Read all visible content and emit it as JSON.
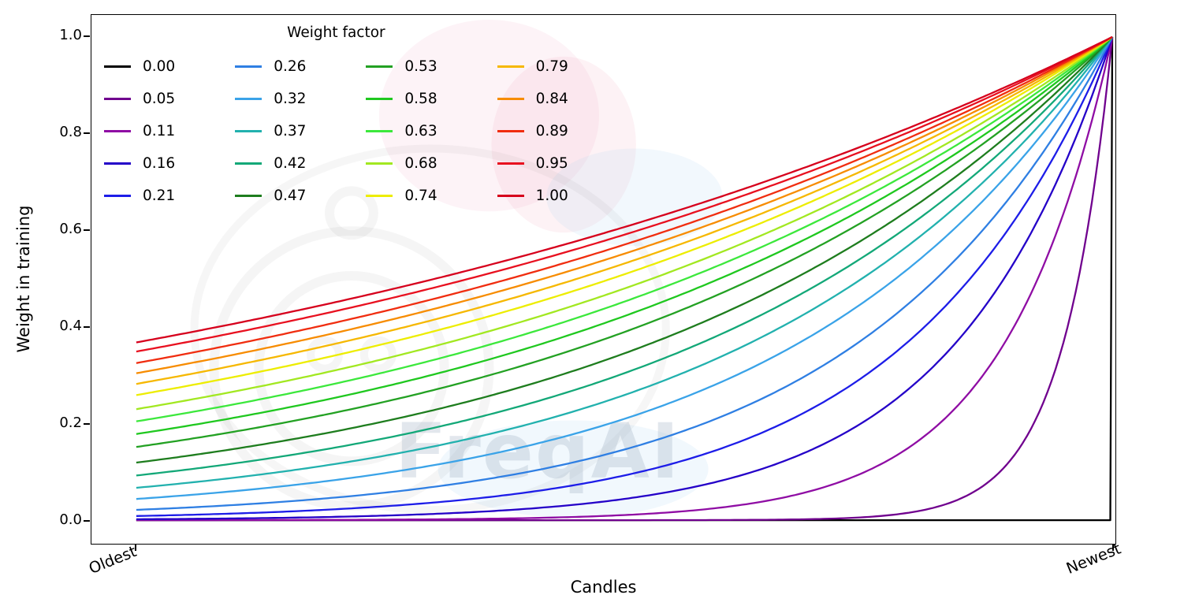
{
  "figure": {
    "watermark": "FreqAI"
  },
  "chart_data": {
    "type": "line",
    "title": "",
    "xlabel": "Candles",
    "ylabel": "Weight in training",
    "ylim": [
      0.0,
      1.0
    ],
    "yticks": [
      0.0,
      0.2,
      0.4,
      0.6,
      0.8,
      1.0
    ],
    "y_tick_labels": [
      "0.0",
      "0.2",
      "0.4",
      "0.6",
      "0.8",
      "1.0"
    ],
    "x_axis": {
      "kind": "normalized-candle-index",
      "range": [
        0,
        1
      ],
      "tick_positions": [
        0,
        1
      ],
      "tick_labels": [
        "Oldest",
        "Newest"
      ]
    },
    "legend": {
      "title": "Weight factor",
      "position": "upper left",
      "columns": 4,
      "frame": false
    },
    "formula": "weight(x) = exp(-(1 - x) / weight_factor) for x in [0,1] from Oldest to Newest; weight_factor 0 gives 0 everywhere except 1 at Newest",
    "x_samples": [
      0,
      0.1,
      0.2,
      0.3,
      0.4,
      0.5,
      0.6,
      0.7,
      0.8,
      0.9,
      1.0
    ],
    "series": [
      {
        "name": "0.00",
        "factor": 0.0,
        "color": "#000000",
        "values": [
          0,
          0,
          0,
          0,
          0,
          0,
          0,
          0,
          0,
          0,
          1
        ]
      },
      {
        "name": "0.05",
        "factor": 0.05,
        "color": "#70018e",
        "values": [
          0,
          0,
          0,
          0,
          0,
          0,
          0,
          0.003,
          0.018,
          0.135,
          1
        ]
      },
      {
        "name": "0.11",
        "factor": 0.11,
        "color": "#8f0da4",
        "values": [
          0,
          0,
          0.001,
          0.002,
          0.004,
          0.011,
          0.026,
          0.065,
          0.162,
          0.403,
          1
        ]
      },
      {
        "name": "0.16",
        "factor": 0.16,
        "color": "#2400c8",
        "values": [
          0.002,
          0.004,
          0.007,
          0.013,
          0.024,
          0.044,
          0.082,
          0.153,
          0.287,
          0.535,
          1
        ]
      },
      {
        "name": "0.21",
        "factor": 0.21,
        "color": "#1d1de8",
        "values": [
          0.009,
          0.014,
          0.022,
          0.036,
          0.057,
          0.092,
          0.149,
          0.24,
          0.386,
          0.621,
          1
        ]
      },
      {
        "name": "0.26",
        "factor": 0.26,
        "color": "#2f7fe3",
        "values": [
          0.021,
          0.031,
          0.046,
          0.068,
          0.1,
          0.146,
          0.215,
          0.316,
          0.463,
          0.681,
          1
        ]
      },
      {
        "name": "0.32",
        "factor": 0.32,
        "color": "#3aa3e8",
        "values": [
          0.044,
          0.06,
          0.082,
          0.112,
          0.153,
          0.21,
          0.287,
          0.392,
          0.535,
          0.732,
          1
        ]
      },
      {
        "name": "0.37",
        "factor": 0.37,
        "color": "#22b1ae",
        "values": [
          0.067,
          0.088,
          0.115,
          0.151,
          0.198,
          0.259,
          0.339,
          0.444,
          0.582,
          0.763,
          1
        ]
      },
      {
        "name": "0.42",
        "factor": 0.42,
        "color": "#13a878",
        "values": [
          0.092,
          0.117,
          0.149,
          0.189,
          0.24,
          0.304,
          0.386,
          0.49,
          0.621,
          0.788,
          1
        ]
      },
      {
        "name": "0.47",
        "factor": 0.47,
        "color": "#1e7d1e",
        "values": [
          0.119,
          0.147,
          0.182,
          0.226,
          0.279,
          0.345,
          0.427,
          0.528,
          0.653,
          0.808,
          1
        ]
      },
      {
        "name": "0.53",
        "factor": 0.53,
        "color": "#23a123",
        "values": [
          0.152,
          0.183,
          0.221,
          0.267,
          0.322,
          0.389,
          0.47,
          0.568,
          0.686,
          0.828,
          1
        ]
      },
      {
        "name": "0.58",
        "factor": 0.58,
        "color": "#1fc81f",
        "values": [
          0.178,
          0.212,
          0.252,
          0.299,
          0.356,
          0.422,
          0.502,
          0.596,
          0.708,
          0.842,
          1
        ]
      },
      {
        "name": "0.63",
        "factor": 0.63,
        "color": "#3ce83c",
        "values": [
          0.204,
          0.24,
          0.281,
          0.329,
          0.386,
          0.452,
          0.53,
          0.621,
          0.728,
          0.853,
          1
        ]
      },
      {
        "name": "0.68",
        "factor": 0.68,
        "color": "#a2e821",
        "values": [
          0.23,
          0.266,
          0.308,
          0.357,
          0.414,
          0.479,
          0.555,
          0.643,
          0.745,
          0.863,
          1
        ]
      },
      {
        "name": "0.74",
        "factor": 0.74,
        "color": "#eded00",
        "values": [
          0.259,
          0.296,
          0.339,
          0.388,
          0.444,
          0.509,
          0.582,
          0.667,
          0.763,
          0.874,
          1
        ]
      },
      {
        "name": "0.79",
        "factor": 0.79,
        "color": "#f6b801",
        "values": [
          0.282,
          0.32,
          0.363,
          0.412,
          0.468,
          0.531,
          0.603,
          0.684,
          0.776,
          0.881,
          1
        ]
      },
      {
        "name": "0.84",
        "factor": 0.84,
        "color": "#f78c01",
        "values": [
          0.304,
          0.343,
          0.386,
          0.435,
          0.49,
          0.551,
          0.621,
          0.7,
          0.788,
          0.888,
          1
        ]
      },
      {
        "name": "0.89",
        "factor": 0.89,
        "color": "#f02d0f",
        "values": [
          0.325,
          0.364,
          0.407,
          0.455,
          0.51,
          0.57,
          0.638,
          0.714,
          0.798,
          0.894,
          1
        ]
      },
      {
        "name": "0.95",
        "factor": 0.95,
        "color": "#e8101f",
        "values": [
          0.349,
          0.388,
          0.431,
          0.479,
          0.532,
          0.591,
          0.656,
          0.729,
          0.81,
          0.9,
          1
        ]
      },
      {
        "name": "1.00",
        "factor": 1.0,
        "color": "#d6001c",
        "values": [
          0.368,
          0.407,
          0.449,
          0.497,
          0.549,
          0.607,
          0.67,
          0.741,
          0.819,
          0.905,
          1
        ]
      }
    ]
  }
}
